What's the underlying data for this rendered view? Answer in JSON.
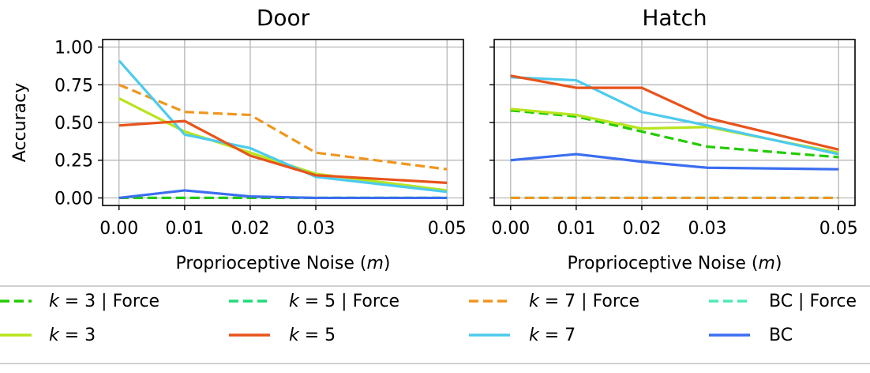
{
  "chart_data": [
    {
      "type": "line",
      "title": "Door",
      "xlabel": "Proprioceptive Noise (m)",
      "ylabel": "Accuracy",
      "x": [
        0.0,
        0.01,
        0.02,
        0.03,
        0.05
      ],
      "xticks": [
        "0.00",
        "0.01",
        "0.02",
        "0.03",
        "0.05"
      ],
      "yticks": [
        "0.00",
        "0.25",
        "0.50",
        "0.75",
        "1.00"
      ],
      "xlim": [
        -0.0025,
        0.0525
      ],
      "ylim": [
        -0.05,
        1.05
      ],
      "grid": true,
      "series": [
        {
          "name": "k = 3 | Force",
          "values": [
            0.0,
            0.0,
            0.0,
            0.0,
            0.0
          ]
        },
        {
          "name": "k = 5 | Force",
          "values": [
            0.0,
            0.0,
            0.0,
            0.0,
            0.0
          ]
        },
        {
          "name": "k = 7 | Force",
          "values": [
            0.75,
            0.57,
            0.55,
            0.3,
            0.19
          ]
        },
        {
          "name": "BC | Force",
          "values": [
            0.0,
            0.0,
            0.0,
            0.0,
            0.0
          ]
        },
        {
          "name": "k = 3",
          "values": [
            0.66,
            0.44,
            0.3,
            0.16,
            0.05
          ]
        },
        {
          "name": "k = 5",
          "values": [
            0.48,
            0.51,
            0.28,
            0.15,
            0.1
          ]
        },
        {
          "name": "k = 7",
          "values": [
            0.91,
            0.42,
            0.33,
            0.14,
            0.04
          ]
        },
        {
          "name": "BC",
          "values": [
            0.0,
            0.05,
            0.01,
            0.0,
            0.0
          ]
        }
      ]
    },
    {
      "type": "line",
      "title": "Hatch",
      "xlabel": "Proprioceptive Noise (m)",
      "ylabel": "",
      "x": [
        0.0,
        0.01,
        0.02,
        0.03,
        0.05
      ],
      "xticks": [
        "0.00",
        "0.01",
        "0.02",
        "0.03",
        "0.05"
      ],
      "xlim": [
        -0.0025,
        0.0525
      ],
      "ylim": [
        -0.05,
        1.05
      ],
      "grid": true,
      "series": [
        {
          "name": "k = 3 | Force",
          "values": [
            0.58,
            0.54,
            0.44,
            0.34,
            0.27
          ]
        },
        {
          "name": "k = 5 | Force",
          "values": [
            0.0,
            0.0,
            0.0,
            0.0,
            0.0
          ]
        },
        {
          "name": "k = 7 | Force",
          "values": [
            0.0,
            0.0,
            0.0,
            0.0,
            0.0
          ]
        },
        {
          "name": "BC | Force",
          "values": [
            0.0,
            0.0,
            0.0,
            0.0,
            0.0
          ]
        },
        {
          "name": "k = 3",
          "values": [
            0.59,
            0.55,
            0.46,
            0.47,
            0.3
          ]
        },
        {
          "name": "k = 5",
          "values": [
            0.81,
            0.73,
            0.73,
            0.53,
            0.32
          ]
        },
        {
          "name": "k = 7",
          "values": [
            0.8,
            0.78,
            0.57,
            0.48,
            0.29
          ]
        },
        {
          "name": "BC",
          "values": [
            0.25,
            0.29,
            0.24,
            0.2,
            0.19
          ]
        }
      ]
    }
  ],
  "legend": {
    "placement": "bottom",
    "entries": [
      {
        "series": "k = 3 | Force",
        "italic": "k",
        "rest": " = 3 | Force",
        "color": "#22cc00",
        "dash": true
      },
      {
        "series": "k = 5 | Force",
        "italic": "k",
        "rest": " = 5 | Force",
        "color": "#1fdc7a",
        "dash": true
      },
      {
        "series": "k = 7 | Force",
        "italic": "k",
        "rest": " = 7 | Force",
        "color": "#f0961e",
        "dash": true
      },
      {
        "series": "BC | Force",
        "italic": "",
        "rest": "BC | Force",
        "color": "#4de8b8",
        "dash": true
      },
      {
        "series": "k = 3",
        "italic": "k",
        "rest": " = 3",
        "color": "#b8e41c",
        "dash": false
      },
      {
        "series": "k = 5",
        "italic": "k",
        "rest": " = 5",
        "color": "#e8531a",
        "dash": false
      },
      {
        "series": "k = 7",
        "italic": "k",
        "rest": " = 7",
        "color": "#4ccbee",
        "dash": false
      },
      {
        "series": "BC",
        "italic": "",
        "rest": "BC",
        "color": "#3b6ef0",
        "dash": false
      }
    ]
  },
  "colors": {
    "k = 3 | Force": "#22cc00",
    "k = 5 | Force": "#1fdc7a",
    "k = 7 | Force": "#f0961e",
    "BC | Force": "#4de8b8",
    "k = 3": "#b8e41c",
    "k = 5": "#e8531a",
    "k = 7": "#4ccbee",
    "BC": "#3b6ef0",
    "grid": "#b0b0b0"
  }
}
